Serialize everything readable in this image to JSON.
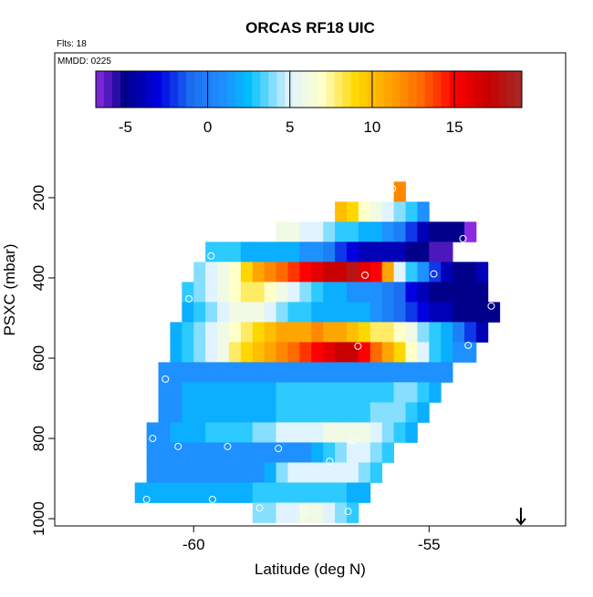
{
  "chart_data": {
    "type": "heatmap",
    "title": "ORCAS RF18 UIC",
    "flights_label": "Flts: 18",
    "date_label": "MMDD: 0225",
    "xlabel": "Latitude (deg N)",
    "ylabel": "PSXC (mbar)",
    "xlim": [
      -62.95,
      -52.1
    ],
    "xticks": [
      -60,
      -55
    ],
    "ylim": [
      1018,
      -161
    ],
    "yticks": [
      200,
      400,
      600,
      800,
      1000
    ],
    "lat_step": 0.25,
    "level_step": 50,
    "levels": [
      185,
      235,
      285,
      335,
      385,
      435,
      485,
      535,
      585,
      635,
      685,
      735,
      785,
      835,
      885,
      935,
      985
    ],
    "rows": [
      {
        "lat0": -55.75,
        "values": [
          12
        ]
      },
      {
        "lat0": -57.0,
        "values": [
          10,
          9,
          7,
          6,
          5,
          4,
          3,
          1
        ]
      },
      {
        "lat0": -58.25,
        "values": [
          6,
          6,
          5,
          5,
          4,
          3,
          3,
          2,
          2,
          1,
          0,
          -2,
          -4,
          -5,
          -5,
          -5,
          -7
        ]
      },
      {
        "lat0": -59.75,
        "values": [
          3,
          3,
          3,
          2,
          2,
          2,
          2,
          2,
          1,
          1,
          0,
          -2,
          -3,
          -4,
          -4,
          -4,
          -4,
          -5,
          -5,
          -6,
          -6
        ]
      },
      {
        "lat0": -60.0,
        "values": [
          4,
          5,
          6,
          7,
          9,
          11,
          12,
          13,
          14,
          15,
          16,
          17,
          17,
          18,
          16,
          15,
          11,
          5,
          3,
          1,
          -2,
          -4,
          -5,
          -5,
          -4
        ]
      },
      {
        "lat0": -60.25,
        "values": [
          3,
          4,
          5,
          6,
          7,
          8,
          8,
          7,
          6,
          5,
          4,
          3,
          2,
          2,
          1,
          1,
          1,
          0,
          -1,
          -3,
          -4,
          -5,
          -5,
          -5,
          -5,
          -5
        ]
      },
      {
        "lat0": -60.25,
        "values": [
          2,
          3,
          4,
          5,
          6,
          6,
          6,
          5,
          4,
          3,
          3,
          2,
          2,
          2,
          2,
          2,
          1,
          0,
          -1,
          -2,
          -3,
          -4,
          -4,
          -5,
          -5,
          -5,
          -5
        ]
      },
      {
        "lat0": -60.5,
        "values": [
          2,
          3,
          4,
          5,
          6,
          7,
          8,
          9,
          10,
          11,
          11,
          11,
          12,
          11,
          11,
          10,
          9,
          8,
          8,
          7,
          6,
          4,
          3,
          2,
          0,
          -2,
          -4
        ]
      },
      {
        "lat0": -60.5,
        "values": [
          2,
          3,
          4,
          5,
          6,
          8,
          9,
          10,
          11,
          12,
          13,
          14,
          15,
          16,
          17,
          17,
          15,
          13,
          11,
          9,
          7,
          5,
          3,
          2,
          1,
          1
        ]
      },
      {
        "lat0": -60.75,
        "values": [
          1,
          1,
          1,
          1,
          1,
          1,
          1,
          1,
          1,
          1,
          1,
          1,
          1,
          1,
          1,
          1,
          1,
          1,
          1,
          1,
          1,
          1,
          1,
          1,
          1
        ]
      },
      {
        "lat0": -60.75,
        "values": [
          1,
          1,
          2,
          2,
          2,
          2,
          2,
          2,
          2,
          2,
          3,
          3,
          3,
          3,
          3,
          3,
          3,
          3,
          3,
          3,
          4,
          4,
          3,
          2
        ]
      },
      {
        "lat0": -60.75,
        "values": [
          1,
          1,
          2,
          2,
          2,
          2,
          2,
          2,
          2,
          2,
          3,
          3,
          3,
          3,
          3,
          3,
          3,
          3,
          4,
          4,
          4,
          3,
          2
        ]
      },
      {
        "lat0": -61.0,
        "values": [
          1,
          1,
          2,
          2,
          2,
          3,
          3,
          3,
          3,
          4,
          4,
          5,
          5,
          5,
          5,
          6,
          6,
          6,
          6,
          5,
          4,
          3,
          2
        ]
      },
      {
        "lat0": -61.0,
        "values": [
          1,
          1,
          1,
          1,
          1,
          1,
          1,
          1,
          1,
          1,
          1,
          1,
          1,
          1,
          2,
          3,
          4,
          5,
          5,
          4,
          3
        ]
      },
      {
        "lat0": -61.0,
        "values": [
          1,
          1,
          1,
          1,
          1,
          1,
          1,
          1,
          1,
          1,
          2,
          4,
          5,
          5,
          5,
          5,
          5,
          5,
          4,
          3
        ]
      },
      {
        "lat0": -61.25,
        "values": [
          2,
          2,
          2,
          2,
          2,
          2,
          2,
          2,
          2,
          2,
          3,
          3,
          3,
          3,
          3,
          3,
          3,
          3,
          2,
          2
        ]
      },
      {
        "lat0": -58.75,
        "values": [
          4,
          4,
          5,
          5,
          6,
          6,
          5,
          4,
          3
        ]
      }
    ],
    "colorbar": {
      "lim": [
        -6.8,
        19.1
      ],
      "ticks": [
        -5,
        0,
        5,
        10,
        15
      ]
    },
    "colorscale": [
      [
        -6.8,
        "#8a2be2"
      ],
      [
        -5,
        "#00008b"
      ],
      [
        -3,
        "#0000e0"
      ],
      [
        -1,
        "#1c6ef0"
      ],
      [
        1,
        "#1e90ff"
      ],
      [
        2.5,
        "#00bfff"
      ],
      [
        5,
        "#e0f4ff"
      ],
      [
        7,
        "#ffffc8"
      ],
      [
        9,
        "#ffd700"
      ],
      [
        11,
        "#ffa500"
      ],
      [
        13,
        "#ff6a00"
      ],
      [
        15,
        "#ff0000"
      ],
      [
        17,
        "#c80000"
      ],
      [
        19.1,
        "#a52a2a"
      ]
    ],
    "markers": [
      {
        "lat": -55.78,
        "p": 177
      },
      {
        "lat": -54.28,
        "p": 302
      },
      {
        "lat": -59.63,
        "p": 345
      },
      {
        "lat": -56.36,
        "p": 393
      },
      {
        "lat": -54.9,
        "p": 390
      },
      {
        "lat": -60.1,
        "p": 452
      },
      {
        "lat": -53.68,
        "p": 470
      },
      {
        "lat": -54.17,
        "p": 568
      },
      {
        "lat": -56.51,
        "p": 570
      },
      {
        "lat": -60.6,
        "p": 652
      },
      {
        "lat": -60.87,
        "p": 800
      },
      {
        "lat": -60.33,
        "p": 820
      },
      {
        "lat": -59.28,
        "p": 820
      },
      {
        "lat": -58.2,
        "p": 825
      },
      {
        "lat": -56.63,
        "p": 805
      },
      {
        "lat": -57.11,
        "p": 857
      },
      {
        "lat": -61.0,
        "p": 952
      },
      {
        "lat": -59.6,
        "p": 952
      },
      {
        "lat": -58.6,
        "p": 973
      },
      {
        "lat": -57.65,
        "p": 982
      },
      {
        "lat": -56.72,
        "p": 982
      }
    ],
    "arrow_lat": -53.05
  }
}
